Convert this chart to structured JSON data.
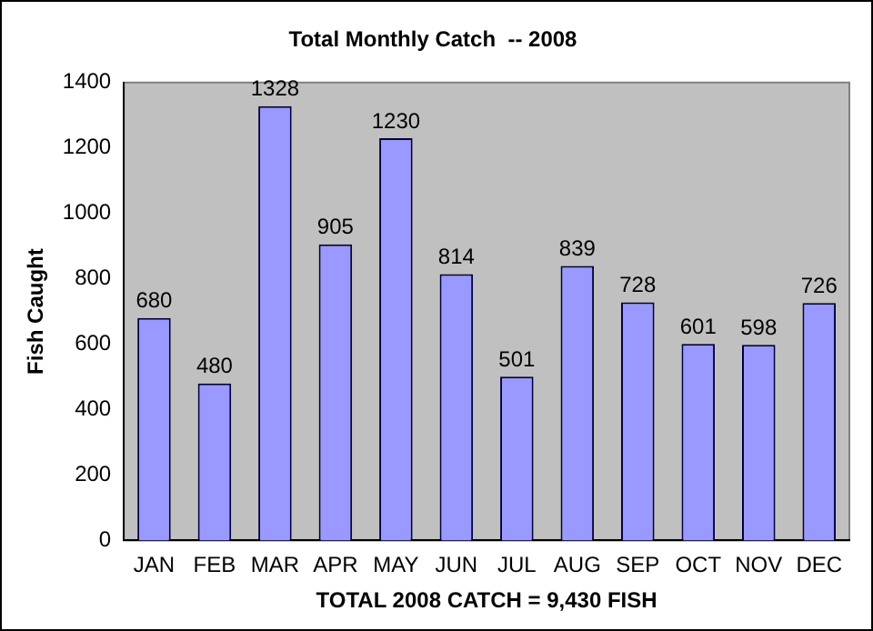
{
  "chart_data": {
    "type": "bar",
    "title": "Total Monthly Catch  -- 2008",
    "xlabel": "TOTAL 2008 CATCH = 9,430 FISH",
    "ylabel": "Fish Caught",
    "categories": [
      "JAN",
      "FEB",
      "MAR",
      "APR",
      "MAY",
      "JUN",
      "JUL",
      "AUG",
      "SEP",
      "OCT",
      "NOV",
      "DEC"
    ],
    "values": [
      680,
      480,
      1328,
      905,
      1230,
      814,
      501,
      839,
      728,
      601,
      598,
      726
    ],
    "color": "#9999ff",
    "ylim": [
      0,
      1400
    ],
    "yticks": [
      0,
      200,
      400,
      600,
      800,
      1000,
      1200,
      1400
    ],
    "grid": false,
    "legend": false,
    "data_labels": true
  }
}
